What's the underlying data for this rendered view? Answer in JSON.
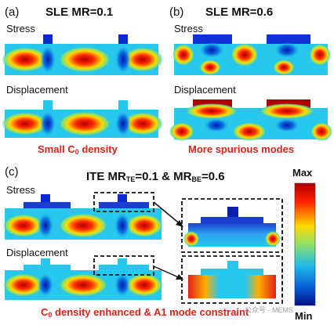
{
  "panel_a": {
    "letter": "(a)",
    "title": "SLE MR=0.1",
    "stress_label": "Stress",
    "displacement_label": "Displacement",
    "caption_pre": "Small C",
    "caption_sub": "0",
    "caption_post": " density"
  },
  "panel_b": {
    "letter": "(b)",
    "title": "SLE MR=0.6",
    "stress_label": "Stress",
    "displacement_label": "Displacement",
    "caption": "More spurious modes"
  },
  "panel_c": {
    "letter": "(c)",
    "title_a": "ITE MR",
    "title_a_sub": "TE",
    "title_b": "=0.1 & MR",
    "title_b_sub": "BE",
    "title_c": "=0.6",
    "stress_label": "Stress",
    "displacement_label": "Displacement",
    "caption_pre": "C",
    "caption_sub": "0",
    "caption_post": " density enhanced & A1 mode constraint"
  },
  "colorbar": {
    "max_label": "Max",
    "min_label": "Min"
  },
  "watermark": "公众号 · MEMS"
}
